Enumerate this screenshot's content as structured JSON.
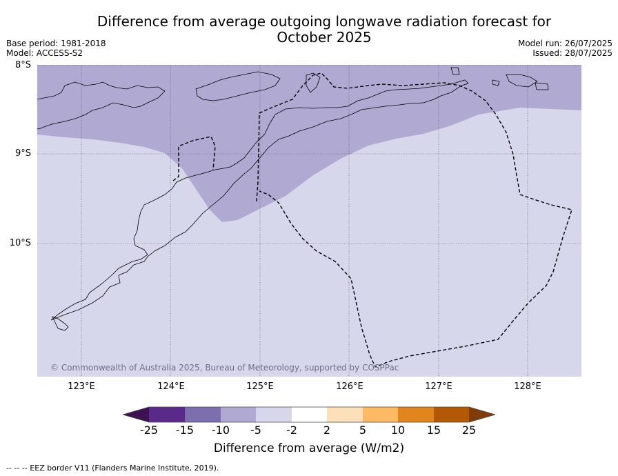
{
  "title_line1": "Difference from average outgoing longwave radiation forecast for",
  "title_line2": "October 2025",
  "base_period": "Base period: 1981-2018",
  "model": "Model: ACCESS-S2",
  "model_run": "Model run: 26/07/2025",
  "issued": "Issued: 28/07/2025",
  "lat_labels": [
    "8°S",
    "9°S",
    "10°S"
  ],
  "lon_labels": [
    "123°E",
    "124°E",
    "125°E",
    "126°E",
    "127°E",
    "128°E"
  ],
  "copyright": "© Commonwealth of Australia 2025, Bureau of Meteorology, supported by COSPPac",
  "colorbar": {
    "ticks": [
      "-25",
      "-15",
      "-10",
      "-5",
      "-2",
      "2",
      "5",
      "10",
      "15",
      "25"
    ],
    "colors": [
      "#3d1154",
      "#5a2a8a",
      "#7d6fae",
      "#b0a9d2",
      "#d6d7eb",
      "#ffffff",
      "#fde0b9",
      "#fdb963",
      "#e2851d",
      "#b35806",
      "#7f3b08"
    ],
    "label": "Difference from average (W/m2)"
  },
  "footer": "--  --  -- EEZ border V11 (Flanders Marine Institute, 2019).",
  "map": {
    "lon_range": [
      122.5,
      128.6
    ],
    "lat_range": [
      -11.5,
      -8.0
    ],
    "background_color": "#d6d7eb",
    "anomaly_region_color": "#b0a9d2"
  }
}
